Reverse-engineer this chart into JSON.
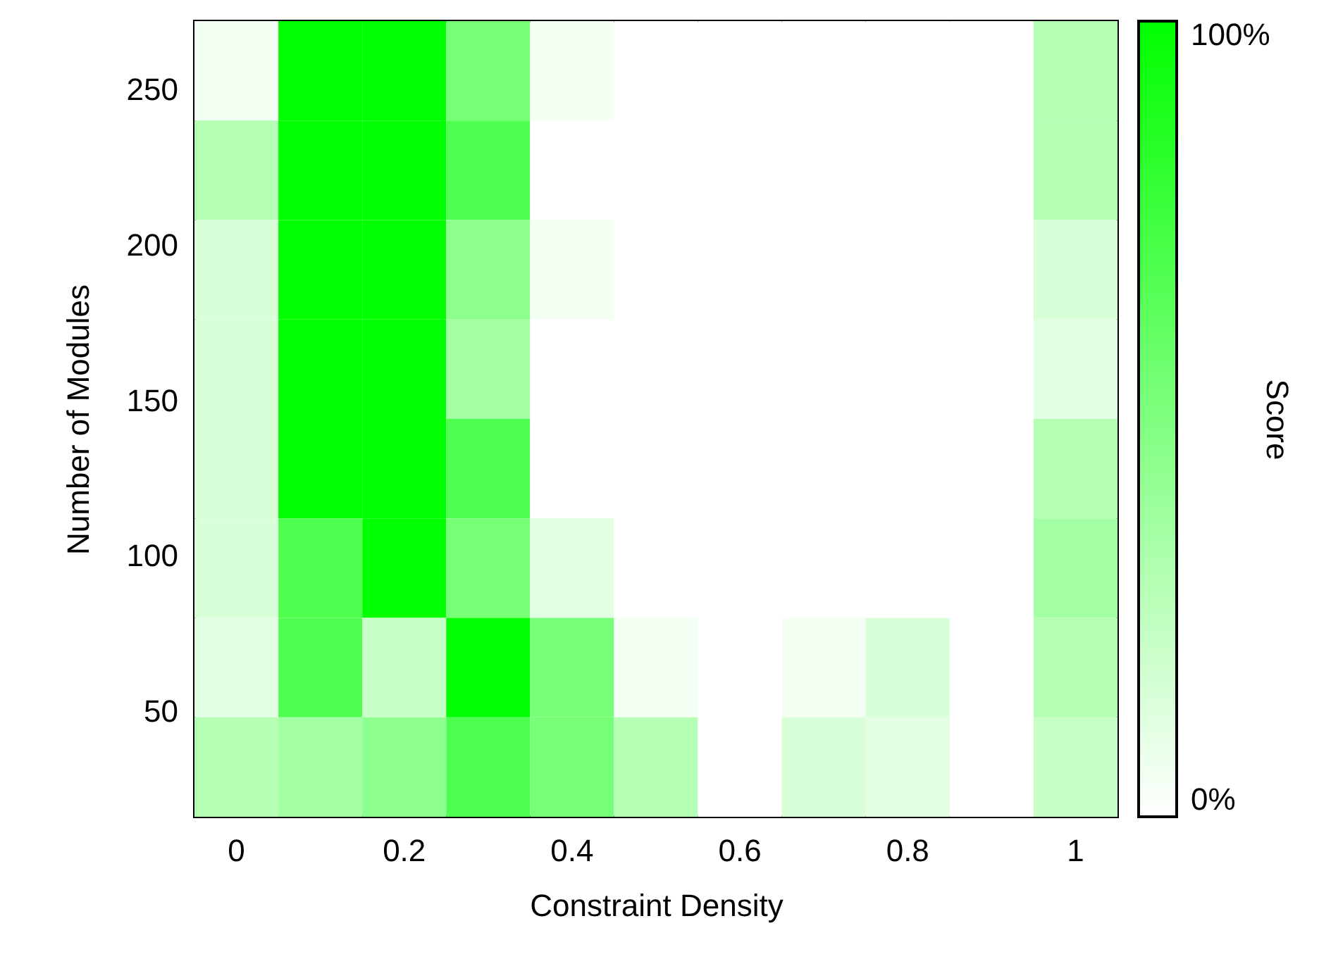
{
  "chart_data": {
    "type": "heatmap",
    "xlabel": "Constraint Density",
    "ylabel": "Number of Modules",
    "clabel": "Score",
    "categories": [
      "0",
      null,
      "0.2",
      null,
      "0.4",
      null,
      "0.6",
      null,
      "0.8",
      null,
      "1"
    ],
    "ylim": [
      16,
      272
    ],
    "yticks": [
      50,
      100,
      150,
      200,
      250
    ],
    "clim": [
      0,
      100
    ],
    "cticks": [
      {
        "value": 0,
        "label": "0%"
      },
      {
        "value": 100,
        "label": "100%"
      }
    ],
    "cells": [
      [
        5,
        100,
        100,
        53,
        5,
        0,
        0,
        0,
        0,
        0,
        29
      ],
      [
        29,
        100,
        100,
        69,
        0,
        0,
        0,
        0,
        0,
        0,
        29
      ],
      [
        15,
        100,
        100,
        45,
        5,
        0,
        0,
        0,
        0,
        0,
        15
      ],
      [
        15,
        100,
        100,
        36,
        0,
        0,
        0,
        0,
        0,
        0,
        11
      ],
      [
        15,
        100,
        100,
        69,
        0,
        0,
        0,
        0,
        0,
        0,
        29
      ],
      [
        15,
        69,
        100,
        53,
        11,
        0,
        0,
        0,
        0,
        0,
        36
      ],
      [
        11,
        69,
        22,
        100,
        53,
        5,
        0,
        5,
        15,
        0,
        29
      ],
      [
        29,
        36,
        45,
        69,
        53,
        29,
        0,
        15,
        11,
        0,
        22
      ]
    ]
  }
}
